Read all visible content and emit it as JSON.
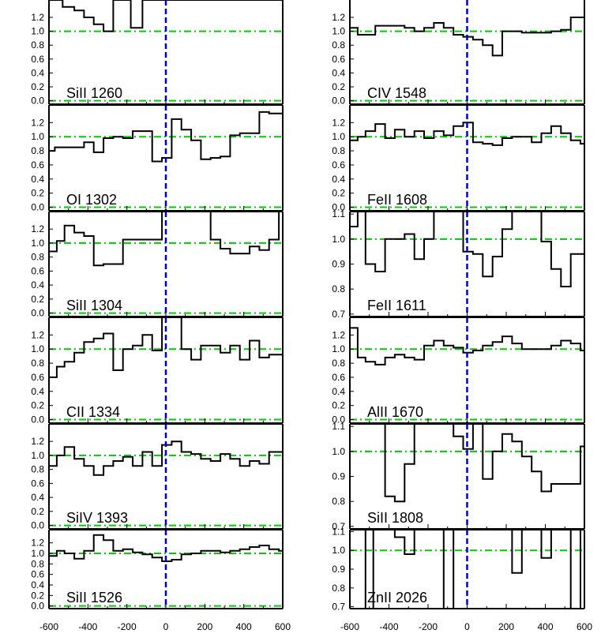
{
  "colors": {
    "axis": "#000000",
    "spectrum": "#000000",
    "zero_line": "#0000cc",
    "continuum": "#00cc00"
  },
  "bottom_ticks": {
    "left": [
      "-600",
      "-400",
      "-200",
      "0",
      "200",
      "400",
      "600"
    ],
    "right": [
      "-600",
      "-400",
      "-200",
      "0",
      "200",
      "400",
      "600"
    ]
  },
  "chart_data": [
    {
      "type": "line",
      "label": "SiII 1260",
      "column": "left",
      "xlim": [
        -600,
        600
      ],
      "ylim": [
        -0.05,
        1.45
      ],
      "yticks": [
        "0.0",
        "0.2",
        "0.4",
        "0.6",
        "0.8",
        "1.0",
        "1.2"
      ],
      "x": [
        -600,
        -530,
        -470,
        -420,
        -370,
        -320,
        -270,
        -220,
        -180,
        -120,
        -60
      ],
      "y": [
        1.5,
        1.35,
        1.3,
        1.2,
        1.1,
        1.0,
        1.5,
        1.5,
        1.05,
        1.5,
        1.5
      ]
    },
    {
      "type": "line",
      "label": "CIV 1548",
      "column": "right",
      "xlim": [
        -600,
        600
      ],
      "ylim": [
        -0.05,
        1.45
      ],
      "yticks": [
        "0.0",
        "0.2",
        "0.4",
        "0.6",
        "0.8",
        "1.0",
        "1.2"
      ],
      "x": [
        -600,
        -560,
        -520,
        -470,
        -420,
        -370,
        -320,
        -270,
        -220,
        -170,
        -120,
        -70,
        -20,
        30,
        80,
        130,
        180,
        230,
        280,
        330,
        380,
        430,
        480,
        530,
        580
      ],
      "y": [
        1.05,
        0.95,
        0.95,
        1.08,
        1.08,
        1.08,
        1.05,
        1.0,
        1.05,
        1.12,
        1.05,
        0.95,
        0.92,
        0.88,
        0.8,
        0.65,
        1.0,
        1.0,
        0.98,
        0.98,
        0.98,
        1.0,
        1.02,
        1.2,
        1.2
      ]
    },
    {
      "type": "line",
      "label": "OI 1302",
      "column": "left",
      "xlim": [
        -600,
        600
      ],
      "ylim": [
        -0.05,
        1.45
      ],
      "yticks": [
        "0.0",
        "0.2",
        "0.4",
        "0.6",
        "0.8",
        "1.0",
        "1.2"
      ],
      "x": [
        -600,
        -570,
        -520,
        -470,
        -420,
        -370,
        -320,
        -270,
        -220,
        -170,
        -120,
        -70,
        -20,
        30,
        80,
        130,
        180,
        230,
        280,
        330,
        380,
        430,
        480,
        530,
        580
      ],
      "y": [
        0.8,
        0.85,
        0.85,
        0.85,
        0.92,
        0.78,
        0.98,
        1.0,
        0.98,
        1.08,
        1.08,
        0.65,
        0.7,
        1.25,
        1.1,
        0.95,
        0.68,
        0.7,
        0.72,
        1.02,
        1.05,
        1.05,
        1.35,
        1.33,
        1.33
      ]
    },
    {
      "type": "line",
      "label": "FeII 1608",
      "column": "right",
      "xlim": [
        -600,
        600
      ],
      "ylim": [
        -0.05,
        1.45
      ],
      "yticks": [
        "0.0",
        "0.2",
        "0.4",
        "0.6",
        "0.8",
        "1.0",
        "1.2"
      ],
      "x": [
        -600,
        -560,
        -520,
        -470,
        -420,
        -370,
        -320,
        -270,
        -220,
        -170,
        -120,
        -70,
        -20,
        30,
        80,
        130,
        180,
        230,
        280,
        330,
        380,
        430,
        480,
        530,
        580
      ],
      "y": [
        0.95,
        1.0,
        1.08,
        1.18,
        0.98,
        1.1,
        1.0,
        1.08,
        0.98,
        1.08,
        1.02,
        1.15,
        1.2,
        0.92,
        0.9,
        0.88,
        0.98,
        1.0,
        1.0,
        0.92,
        1.05,
        1.15,
        1.05,
        0.95,
        0.9
      ]
    },
    {
      "type": "line",
      "label": "SiII 1304",
      "column": "left",
      "xlim": [
        -600,
        600
      ],
      "ylim": [
        -0.05,
        1.45
      ],
      "yticks": [
        "0.0",
        "0.2",
        "0.4",
        "0.6",
        "0.8",
        "1.0",
        "1.2"
      ],
      "x": [
        -600,
        -560,
        -520,
        -470,
        -420,
        -370,
        -320,
        -270,
        -220,
        -170,
        -120,
        -70,
        -20,
        30,
        80,
        130,
        180,
        230,
        280,
        330,
        380,
        430,
        480,
        530,
        580
      ],
      "y": [
        0.88,
        1.03,
        1.25,
        1.15,
        1.1,
        0.68,
        0.7,
        0.7,
        1.05,
        1.05,
        1.05,
        1.05,
        1.45,
        1.45,
        1.45,
        1.45,
        1.45,
        1.05,
        0.92,
        0.85,
        0.85,
        0.95,
        0.9,
        1.05,
        1.45
      ]
    },
    {
      "type": "line",
      "label": "FeII 1611",
      "column": "right",
      "xlim": [
        -600,
        600
      ],
      "ylim": [
        0.69,
        1.11
      ],
      "yticks": [
        "0.7",
        "0.8",
        "0.9",
        "1.0",
        "1.1"
      ],
      "x": [
        -600,
        -560,
        -520,
        -470,
        -420,
        -370,
        -320,
        -270,
        -220,
        -170,
        -120,
        -70,
        -20,
        30,
        80,
        130,
        180,
        230,
        280,
        330,
        380,
        430,
        480,
        530,
        580
      ],
      "y": [
        1.05,
        1.12,
        0.9,
        0.87,
        1.0,
        1.0,
        1.02,
        0.92,
        1.0,
        1.12,
        1.12,
        1.12,
        0.95,
        0.94,
        0.85,
        0.93,
        1.04,
        1.15,
        1.15,
        1.12,
        0.99,
        0.88,
        0.81,
        0.94,
        0.94
      ]
    },
    {
      "type": "line",
      "label": "CII 1334",
      "column": "left",
      "xlim": [
        -600,
        600
      ],
      "ylim": [
        -0.05,
        1.45
      ],
      "yticks": [
        "0.0",
        "0.2",
        "0.4",
        "0.6",
        "0.8",
        "1.0",
        "1.2"
      ],
      "x": [
        -600,
        -560,
        -520,
        -470,
        -420,
        -370,
        -320,
        -270,
        -220,
        -170,
        -120,
        -70,
        -20,
        30,
        80,
        130,
        180,
        230,
        280,
        330,
        380,
        430,
        480,
        530,
        580
      ],
      "y": [
        0.6,
        0.75,
        0.82,
        0.95,
        1.1,
        1.15,
        1.22,
        0.7,
        1.0,
        1.05,
        1.2,
        0.98,
        1.45,
        1.45,
        1.0,
        0.85,
        1.05,
        1.05,
        0.95,
        1.05,
        0.85,
        1.12,
        0.88,
        0.92,
        0.92
      ]
    },
    {
      "type": "line",
      "label": "AlII 1670",
      "column": "right",
      "xlim": [
        -600,
        600
      ],
      "ylim": [
        -0.05,
        1.45
      ],
      "yticks": [
        "0.0",
        "0.2",
        "0.4",
        "0.6",
        "0.8",
        "1.0",
        "1.2"
      ],
      "x": [
        -600,
        -560,
        -520,
        -470,
        -420,
        -370,
        -320,
        -270,
        -220,
        -170,
        -120,
        -70,
        -20,
        30,
        80,
        130,
        180,
        230,
        280,
        330,
        380,
        430,
        480,
        530,
        580
      ],
      "y": [
        1.3,
        0.88,
        0.82,
        0.78,
        0.88,
        0.92,
        0.88,
        0.85,
        1.05,
        1.12,
        1.05,
        1.02,
        0.95,
        0.98,
        1.05,
        1.1,
        1.18,
        1.08,
        1.0,
        1.0,
        1.0,
        1.05,
        1.12,
        1.08,
        0.98
      ]
    },
    {
      "type": "line",
      "label": "SiIV 1393",
      "column": "left",
      "xlim": [
        -600,
        600
      ],
      "ylim": [
        -0.05,
        1.45
      ],
      "yticks": [
        "0.0",
        "0.2",
        "0.4",
        "0.6",
        "0.8",
        "1.0",
        "1.2"
      ],
      "x": [
        -600,
        -560,
        -520,
        -470,
        -420,
        -370,
        -320,
        -270,
        -220,
        -170,
        -120,
        -70,
        -20,
        30,
        80,
        130,
        180,
        230,
        280,
        330,
        380,
        430,
        480,
        530,
        580
      ],
      "y": [
        0.85,
        1.0,
        1.12,
        0.95,
        0.85,
        0.72,
        0.85,
        0.92,
        0.98,
        0.85,
        1.05,
        0.85,
        1.15,
        1.2,
        1.05,
        1.02,
        0.95,
        0.92,
        1.02,
        0.95,
        0.85,
        0.92,
        0.88,
        1.05,
        1.05
      ]
    },
    {
      "type": "line",
      "label": "SiII 1808",
      "column": "right",
      "xlim": [
        -600,
        600
      ],
      "ylim": [
        0.69,
        1.11
      ],
      "yticks": [
        "0.7",
        "0.8",
        "0.9",
        "1.0",
        "1.1"
      ],
      "x": [
        -600,
        -560,
        -520,
        -470,
        -420,
        -370,
        -320,
        -270,
        -220,
        -170,
        -120,
        -70,
        -20,
        30,
        80,
        130,
        180,
        230,
        280,
        330,
        380,
        430,
        480,
        530,
        580
      ],
      "y": [
        1.12,
        1.12,
        1.12,
        1.12,
        0.82,
        0.8,
        0.95,
        1.12,
        1.12,
        1.12,
        1.12,
        1.06,
        1.01,
        1.12,
        0.89,
        1.0,
        1.07,
        1.04,
        0.98,
        0.92,
        0.84,
        0.87,
        0.87,
        0.87,
        1.02
      ]
    },
    {
      "type": "line",
      "label": "SiII 1526",
      "column": "left",
      "xlim": [
        -600,
        600
      ],
      "ylim": [
        -0.05,
        1.45
      ],
      "yticks": [
        "0.0",
        "0.2",
        "0.4",
        "0.6",
        "0.8",
        "1.0",
        "1.2"
      ],
      "x": [
        -600,
        -560,
        -520,
        -470,
        -420,
        -370,
        -320,
        -270,
        -220,
        -170,
        -120,
        -70,
        -20,
        30,
        80,
        130,
        180,
        230,
        280,
        330,
        380,
        430,
        480,
        530,
        580
      ],
      "y": [
        0.95,
        1.05,
        1.0,
        0.9,
        1.05,
        1.35,
        1.25,
        1.05,
        1.08,
        1.02,
        0.98,
        0.92,
        0.85,
        0.88,
        0.98,
        1.0,
        1.05,
        1.05,
        1.02,
        1.05,
        1.08,
        1.12,
        1.15,
        1.08,
        1.05
      ]
    },
    {
      "type": "line",
      "label": "ZnII 2026",
      "column": "right",
      "xlim": [
        -600,
        600
      ],
      "ylim": [
        0.69,
        1.11
      ],
      "yticks": [
        "0.7",
        "0.8",
        "0.9",
        "1.0",
        "1.1"
      ],
      "x": [
        -600,
        -560,
        -520,
        -480,
        -420,
        -370,
        -320,
        -270,
        -220,
        -170,
        -120,
        -70,
        -20,
        30,
        80,
        130,
        180,
        230,
        280,
        330,
        380,
        430,
        480,
        530,
        580
      ],
      "y": [
        1.12,
        1.12,
        0.68,
        1.12,
        1.12,
        1.07,
        0.98,
        1.12,
        1.12,
        1.12,
        0.6,
        1.12,
        1.12,
        1.12,
        1.12,
        1.12,
        1.12,
        0.88,
        1.12,
        1.12,
        0.96,
        1.12,
        1.12,
        0.6,
        1.12
      ]
    }
  ]
}
